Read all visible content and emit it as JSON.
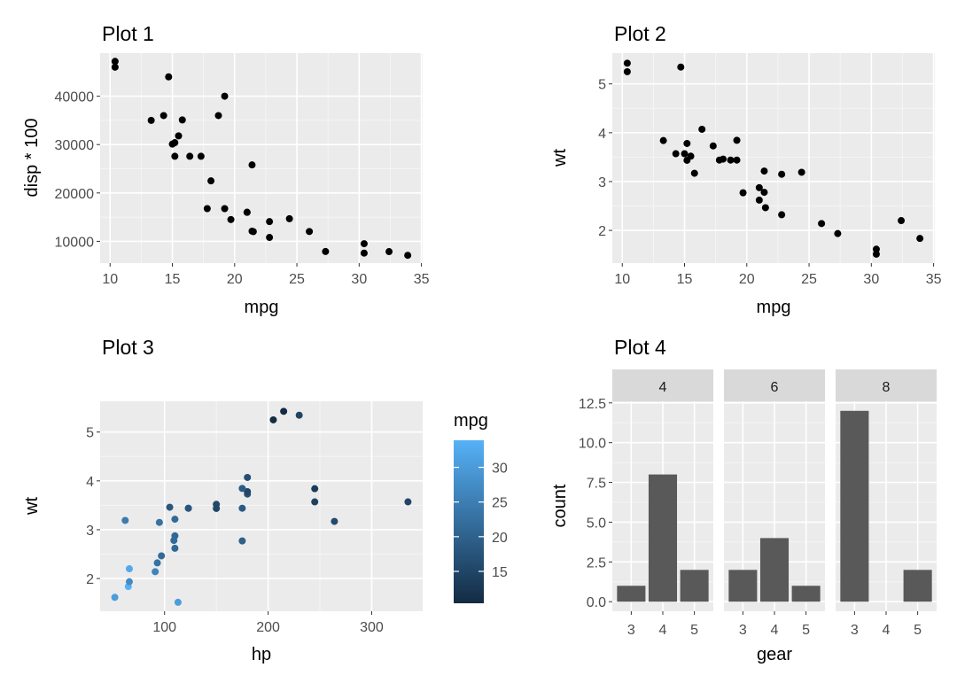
{
  "colors": {
    "panel_bg": "#ebebeb",
    "grid_major": "#ffffff",
    "grid_minor": "#f5f5f5",
    "point": "#000000",
    "bar_fill": "#595959",
    "strip_bg": "#d9d9d9",
    "gradient_low": "#132b43",
    "gradient_high": "#56b1f7"
  },
  "chart_data": [
    {
      "type": "scatter",
      "title": "Plot 1",
      "xlabel": "mpg",
      "ylabel": "disp * 100",
      "xlim": [
        9.2,
        35.1
      ],
      "ylim": [
        5500,
        48900
      ],
      "xticks": [
        10,
        15,
        20,
        25,
        30,
        35
      ],
      "xtick_labels": [
        "10",
        "15",
        "20",
        "25",
        "30",
        "35"
      ],
      "yticks": [
        10000,
        20000,
        30000,
        40000
      ],
      "ytick_labels": [
        "10000",
        "20000",
        "30000",
        "40000"
      ],
      "points": [
        [
          21.0,
          16000
        ],
        [
          21.0,
          16000
        ],
        [
          22.8,
          10800
        ],
        [
          21.4,
          25800
        ],
        [
          18.7,
          36000
        ],
        [
          18.1,
          22500
        ],
        [
          14.3,
          36000
        ],
        [
          24.4,
          14670
        ],
        [
          22.8,
          14080
        ],
        [
          19.2,
          16760
        ],
        [
          17.8,
          16760
        ],
        [
          16.4,
          27580
        ],
        [
          17.3,
          27580
        ],
        [
          15.2,
          27580
        ],
        [
          10.4,
          47200
        ],
        [
          10.4,
          46000
        ],
        [
          14.7,
          44000
        ],
        [
          32.4,
          7870
        ],
        [
          30.4,
          7570
        ],
        [
          33.9,
          7110
        ],
        [
          21.5,
          12010
        ],
        [
          15.5,
          31800
        ],
        [
          15.2,
          30400
        ],
        [
          13.3,
          35000
        ],
        [
          19.2,
          40000
        ],
        [
          27.3,
          7900
        ],
        [
          26.0,
          12030
        ],
        [
          30.4,
          9510
        ],
        [
          15.8,
          35100
        ],
        [
          19.7,
          14500
        ],
        [
          15.0,
          30100
        ],
        [
          21.4,
          12100
        ]
      ]
    },
    {
      "type": "scatter",
      "title": "Plot 2",
      "xlabel": "mpg",
      "ylabel": "wt",
      "xlim": [
        9.2,
        35.1
      ],
      "ylim": [
        1.33,
        5.63
      ],
      "xticks": [
        10,
        15,
        20,
        25,
        30,
        35
      ],
      "xtick_labels": [
        "10",
        "15",
        "20",
        "25",
        "30",
        "35"
      ],
      "yticks": [
        2,
        3,
        4,
        5
      ],
      "ytick_labels": [
        "2",
        "3",
        "4",
        "5"
      ],
      "points": [
        [
          21.0,
          2.62
        ],
        [
          21.0,
          2.875
        ],
        [
          22.8,
          2.32
        ],
        [
          21.4,
          3.215
        ],
        [
          18.7,
          3.44
        ],
        [
          18.1,
          3.46
        ],
        [
          14.3,
          3.57
        ],
        [
          24.4,
          3.19
        ],
        [
          22.8,
          3.15
        ],
        [
          19.2,
          3.44
        ],
        [
          17.8,
          3.44
        ],
        [
          16.4,
          4.07
        ],
        [
          17.3,
          3.73
        ],
        [
          15.2,
          3.78
        ],
        [
          10.4,
          5.25
        ],
        [
          10.4,
          5.424
        ],
        [
          14.7,
          5.345
        ],
        [
          32.4,
          2.2
        ],
        [
          30.4,
          1.615
        ],
        [
          33.9,
          1.835
        ],
        [
          21.5,
          2.465
        ],
        [
          15.5,
          3.52
        ],
        [
          15.2,
          3.435
        ],
        [
          13.3,
          3.84
        ],
        [
          19.2,
          3.845
        ],
        [
          27.3,
          1.935
        ],
        [
          26.0,
          2.14
        ],
        [
          30.4,
          1.513
        ],
        [
          15.8,
          3.17
        ],
        [
          19.7,
          2.77
        ],
        [
          15.0,
          3.57
        ],
        [
          21.4,
          2.78
        ]
      ]
    },
    {
      "type": "scatter",
      "title": "Plot 3",
      "xlabel": "hp",
      "ylabel": "wt",
      "color_by": "mpg",
      "xlim": [
        37.8,
        349.2
      ],
      "ylim": [
        1.33,
        5.63
      ],
      "xticks": [
        100,
        200,
        300
      ],
      "xtick_labels": [
        "100",
        "200",
        "300"
      ],
      "yticks": [
        2,
        3,
        4,
        5
      ],
      "ytick_labels": [
        "2",
        "3",
        "4",
        "5"
      ],
      "legend": {
        "title": "mpg",
        "range": [
          10.4,
          33.9
        ],
        "ticks": [
          15,
          20,
          25,
          30
        ],
        "tick_labels": [
          "15",
          "20",
          "25",
          "30"
        ],
        "placement": "right"
      },
      "points": [
        [
          110,
          2.62,
          21.0
        ],
        [
          110,
          2.875,
          21.0
        ],
        [
          93,
          2.32,
          22.8
        ],
        [
          110,
          3.215,
          21.4
        ],
        [
          175,
          3.44,
          18.7
        ],
        [
          105,
          3.46,
          18.1
        ],
        [
          245,
          3.57,
          14.3
        ],
        [
          62,
          3.19,
          24.4
        ],
        [
          95,
          3.15,
          22.8
        ],
        [
          123,
          3.44,
          19.2
        ],
        [
          123,
          3.44,
          17.8
        ],
        [
          180,
          4.07,
          16.4
        ],
        [
          180,
          3.73,
          17.3
        ],
        [
          180,
          3.78,
          15.2
        ],
        [
          205,
          5.25,
          10.4
        ],
        [
          215,
          5.424,
          10.4
        ],
        [
          230,
          5.345,
          14.7
        ],
        [
          66,
          2.2,
          32.4
        ],
        [
          52,
          1.615,
          30.4
        ],
        [
          65,
          1.835,
          33.9
        ],
        [
          97,
          2.465,
          21.5
        ],
        [
          150,
          3.52,
          15.5
        ],
        [
          150,
          3.435,
          15.2
        ],
        [
          245,
          3.84,
          13.3
        ],
        [
          175,
          3.845,
          19.2
        ],
        [
          66,
          1.935,
          27.3
        ],
        [
          91,
          2.14,
          26.0
        ],
        [
          113,
          1.513,
          30.4
        ],
        [
          264,
          3.17,
          15.8
        ],
        [
          175,
          2.77,
          19.7
        ],
        [
          335,
          3.57,
          15.0
        ],
        [
          109,
          2.78,
          21.4
        ]
      ]
    },
    {
      "type": "bar",
      "title": "Plot 4",
      "xlabel": "gear",
      "ylabel": "count",
      "facet_by": "cyl",
      "categories": [
        "3",
        "4",
        "5"
      ],
      "ylim": [
        -0.6,
        12.6
      ],
      "yticks": [
        0,
        2.5,
        5,
        7.5,
        10,
        12.5
      ],
      "ytick_labels": [
        "0.0",
        "2.5",
        "5.0",
        "7.5",
        "10.0",
        "12.5"
      ],
      "facets": [
        {
          "label": "4",
          "values": [
            1,
            8,
            2
          ]
        },
        {
          "label": "6",
          "values": [
            2,
            4,
            1
          ]
        },
        {
          "label": "8",
          "values": [
            12,
            0,
            2
          ]
        }
      ]
    }
  ]
}
